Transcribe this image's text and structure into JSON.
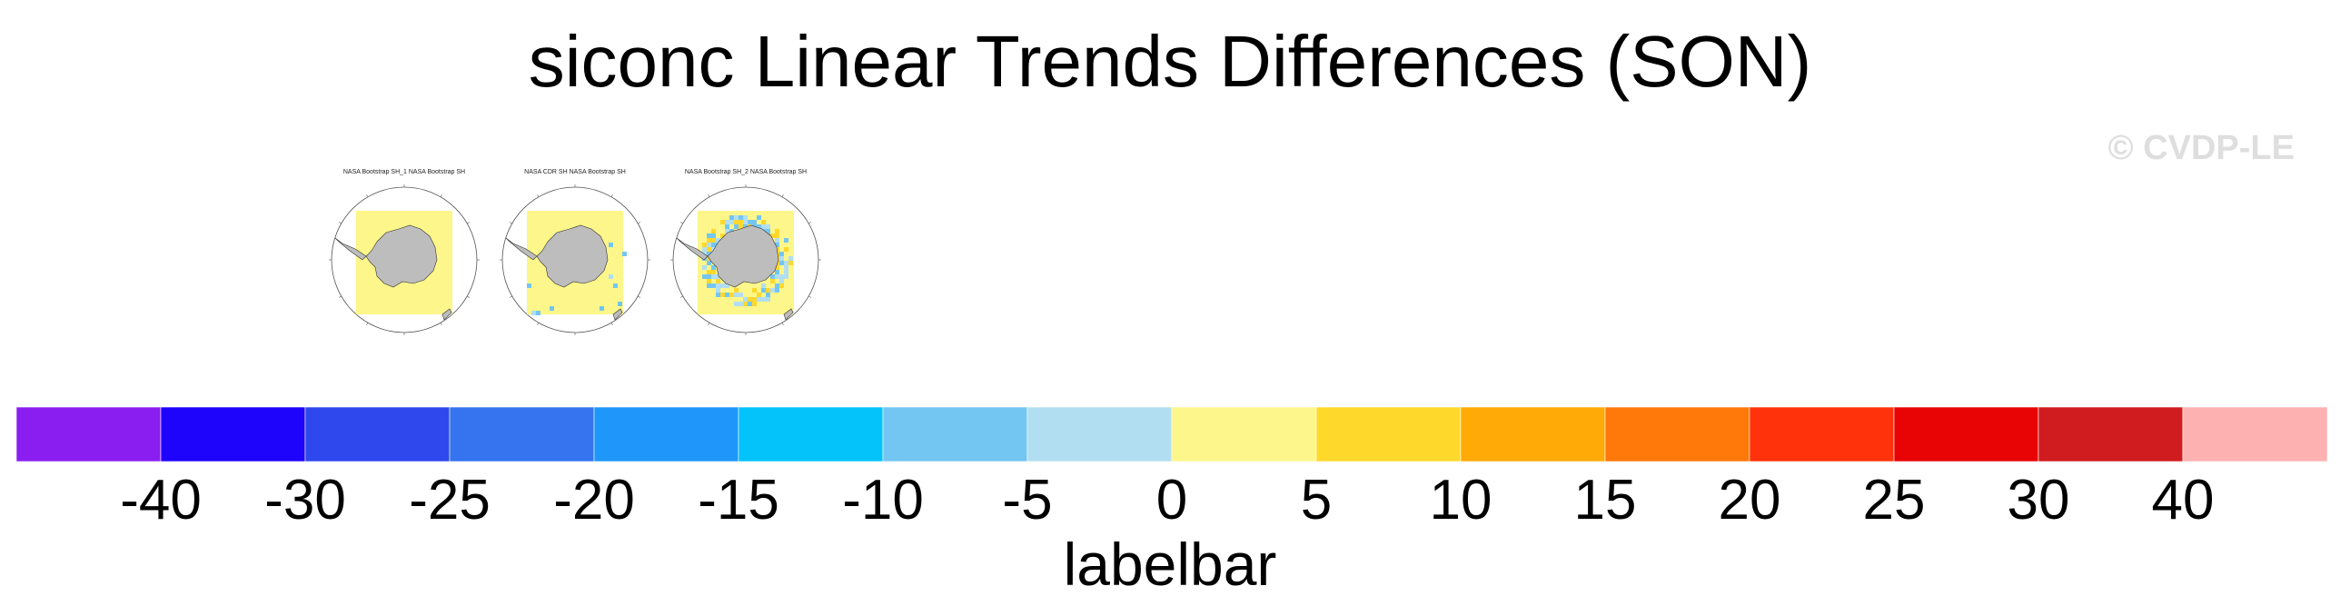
{
  "title": "siconc Linear Trends Differences (SON)",
  "watermark": "© CVDP-LE",
  "chart_data": {
    "type": "heatmap",
    "title": "siconc Linear Trends Differences (SON)",
    "panels": [
      {
        "title": "NASA Bootstrap SH_1 NASA Bootstrap SH",
        "pattern": "uniform"
      },
      {
        "title": "NASA CDR SH NASA Bootstrap SH",
        "pattern": "sparse"
      },
      {
        "title": "NASA Bootstrap SH_2 NASA Bootstrap SH",
        "pattern": "ring"
      }
    ],
    "colorbar": {
      "title": "labelbar",
      "levels": [
        "-40",
        "-30",
        "-25",
        "-20",
        "-15",
        "-10",
        "-5",
        "0",
        "5",
        "10",
        "15",
        "20",
        "25",
        "30",
        "40"
      ],
      "colors": [
        "#8a1ef0",
        "#1e04fa",
        "#2e48ee",
        "#3574ee",
        "#1e96fa",
        "#04c2fa",
        "#74c6f2",
        "#b2def2",
        "#fdf68a",
        "#ffd82c",
        "#ffaa06",
        "#ff780a",
        "#ff320c",
        "#e80404",
        "#d01c1e",
        "#fdb1b1"
      ]
    }
  }
}
